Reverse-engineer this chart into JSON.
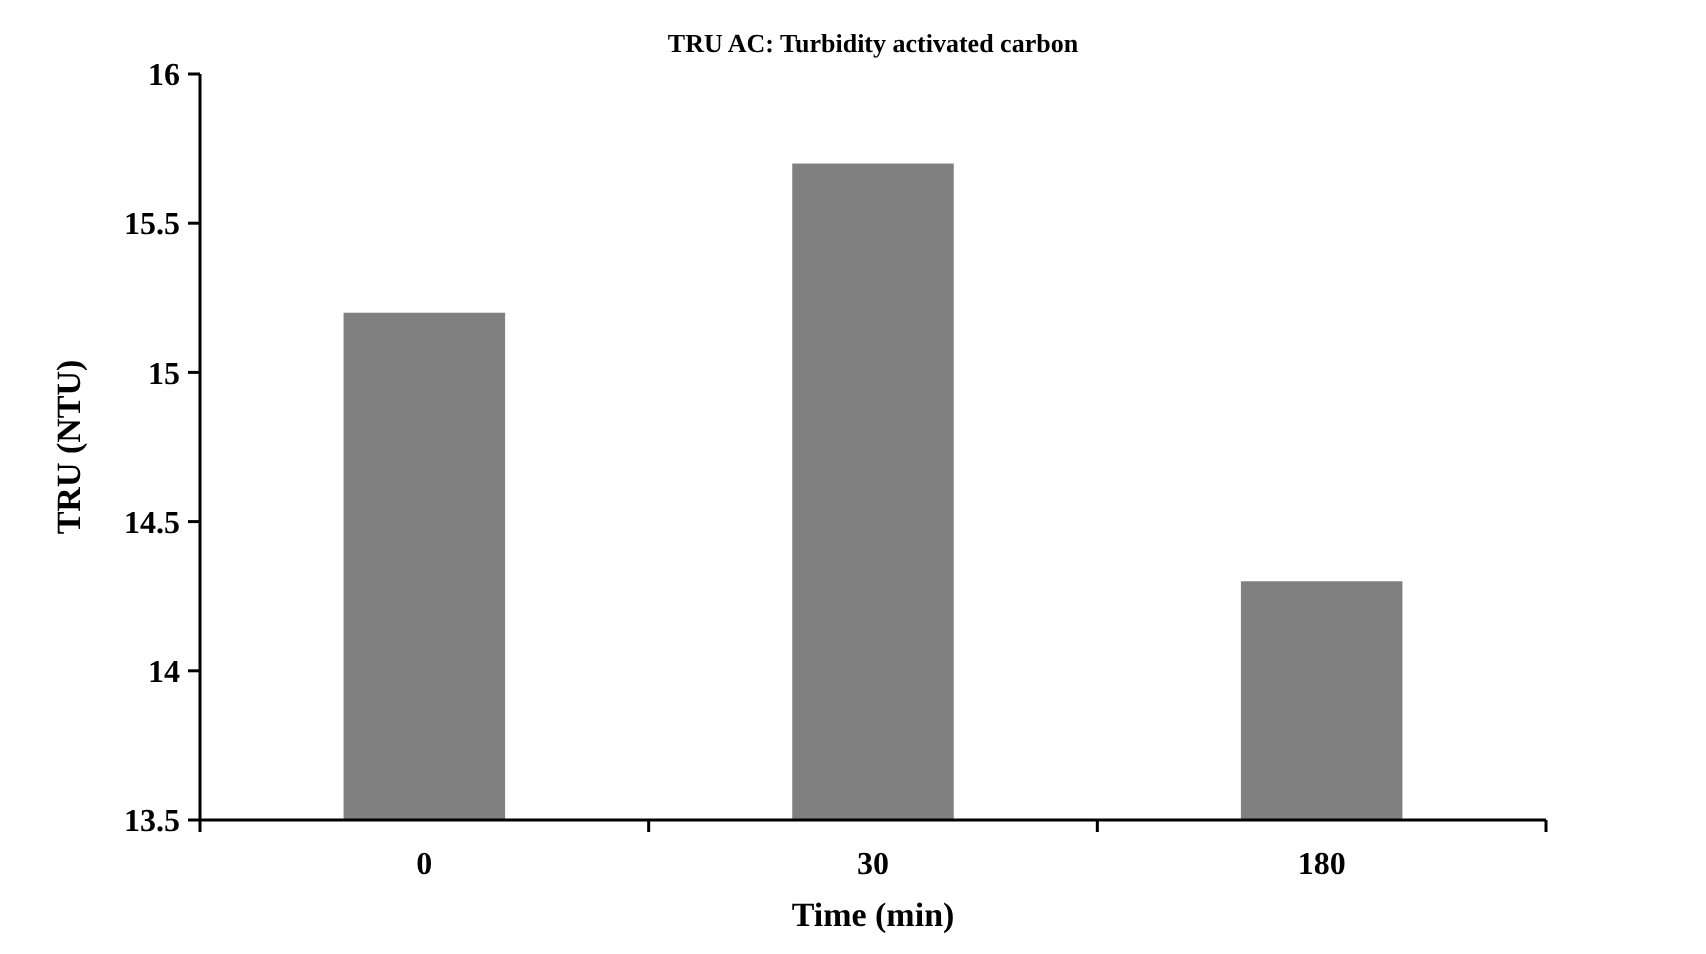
{
  "chart_data": {
    "type": "bar",
    "title": "TRU AC: Turbidity activated carbon",
    "xlabel": "Time (min)",
    "ylabel": "TRU (NTU)",
    "categories": [
      "0",
      "30",
      "180"
    ],
    "values": [
      15.2,
      15.7,
      14.3
    ],
    "color": "#808080",
    "ylim": [
      13.5,
      16
    ],
    "yticks": [
      13.5,
      14,
      14.5,
      15,
      15.5,
      16
    ],
    "grid": false
  }
}
